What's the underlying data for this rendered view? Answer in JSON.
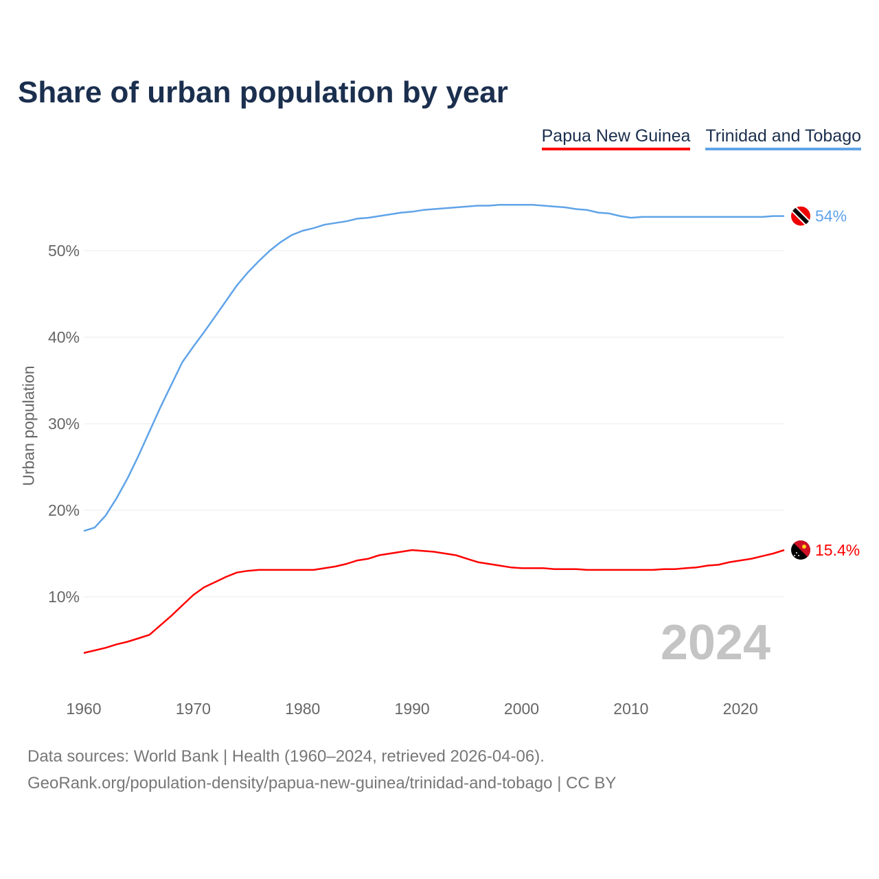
{
  "chart_data": {
    "type": "line",
    "title": "Share of urban population by year",
    "xlabel": "",
    "ylabel": "Urban population",
    "xlim": [
      1960,
      2024
    ],
    "ylim": [
      0,
      60
    ],
    "grid": true,
    "legend_position": "top-right",
    "x_ticks": [
      "1960",
      "1970",
      "1980",
      "1990",
      "2000",
      "2010",
      "2020"
    ],
    "y_ticks": [
      "10%",
      "20%",
      "30%",
      "40%",
      "50%"
    ],
    "y_tick_values": [
      10,
      20,
      30,
      40,
      50
    ],
    "x": [
      1960,
      1961,
      1962,
      1963,
      1964,
      1965,
      1966,
      1967,
      1968,
      1969,
      1970,
      1971,
      1972,
      1973,
      1974,
      1975,
      1976,
      1977,
      1978,
      1979,
      1980,
      1981,
      1982,
      1983,
      1984,
      1985,
      1986,
      1987,
      1988,
      1989,
      1990,
      1991,
      1992,
      1993,
      1994,
      1995,
      1996,
      1997,
      1998,
      1999,
      2000,
      2001,
      2002,
      2003,
      2004,
      2005,
      2006,
      2007,
      2008,
      2009,
      2010,
      2011,
      2012,
      2013,
      2014,
      2015,
      2016,
      2017,
      2018,
      2019,
      2020,
      2021,
      2022,
      2023,
      2024
    ],
    "series": [
      {
        "name": "Papua New Guinea",
        "color": "#ff0000",
        "end_label": "15.4%",
        "values": [
          3.5,
          3.8,
          4.1,
          4.5,
          4.8,
          5.2,
          5.6,
          6.7,
          7.8,
          9.0,
          10.2,
          11.1,
          11.7,
          12.3,
          12.8,
          13.0,
          13.1,
          13.1,
          13.1,
          13.1,
          13.1,
          13.1,
          13.3,
          13.5,
          13.8,
          14.2,
          14.4,
          14.8,
          15.0,
          15.2,
          15.4,
          15.3,
          15.2,
          15.0,
          14.8,
          14.4,
          14.0,
          13.8,
          13.6,
          13.4,
          13.3,
          13.3,
          13.3,
          13.2,
          13.2,
          13.2,
          13.1,
          13.1,
          13.1,
          13.1,
          13.1,
          13.1,
          13.1,
          13.2,
          13.2,
          13.3,
          13.4,
          13.6,
          13.7,
          14.0,
          14.2,
          14.4,
          14.7,
          15.0,
          15.4
        ]
      },
      {
        "name": "Trinidad and Tobago",
        "color": "#5fa3e8",
        "end_label": "54%",
        "values": [
          17.6,
          18.0,
          19.4,
          21.4,
          23.7,
          26.3,
          29.1,
          31.9,
          34.5,
          37.1,
          38.9,
          40.6,
          42.4,
          44.2,
          46.0,
          47.5,
          48.8,
          50.0,
          51.0,
          51.8,
          52.3,
          52.6,
          53.0,
          53.2,
          53.4,
          53.7,
          53.8,
          54.0,
          54.2,
          54.4,
          54.5,
          54.7,
          54.8,
          54.9,
          55.0,
          55.1,
          55.2,
          55.2,
          55.3,
          55.3,
          55.3,
          55.3,
          55.2,
          55.1,
          55.0,
          54.8,
          54.7,
          54.4,
          54.3,
          54.0,
          53.8,
          53.9,
          53.9,
          53.9,
          53.9,
          53.9,
          53.9,
          53.9,
          53.9,
          53.9,
          53.9,
          53.9,
          53.9,
          54.0,
          54.0
        ]
      }
    ],
    "annotation": "2024"
  },
  "footer": {
    "line1": "Data sources: World Bank | Health (1960–2024, retrieved 2026-04-06).",
    "line2": "GeoRank.org/population-density/papua-new-guinea/trinidad-and-tobago | CC BY"
  }
}
